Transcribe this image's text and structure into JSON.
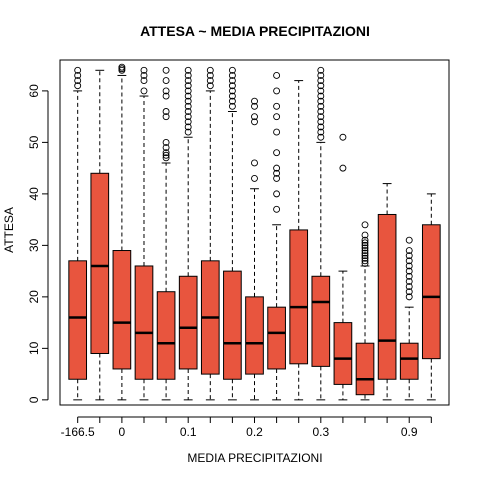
{
  "chart_data": {
    "type": "boxplot",
    "title": "ATTESA ~ MEDIA PRECIPITAZIONI",
    "xlabel": "MEDIA PRECIPITAZIONI",
    "ylabel": "ATTESA",
    "ylim": [
      -1,
      66
    ],
    "y_ticks": [
      0,
      10,
      20,
      30,
      40,
      50,
      60
    ],
    "x_tick_labels": [
      {
        "box": 1,
        "label": "-166.5"
      },
      {
        "box": 3,
        "label": "0"
      },
      {
        "box": 6,
        "label": "0.1"
      },
      {
        "box": 9,
        "label": "0.2"
      },
      {
        "box": 12,
        "label": "0.3"
      },
      {
        "box": 16,
        "label": "0.9"
      }
    ],
    "box_color": "#E8553E",
    "boxes": [
      {
        "q1": 4,
        "median": 16,
        "q3": 27,
        "lower": 0,
        "upper": 60,
        "outliers": [
          61,
          62,
          63,
          64
        ]
      },
      {
        "q1": 9,
        "median": 26,
        "q3": 44,
        "lower": 0,
        "upper": 64,
        "outliers": []
      },
      {
        "q1": 6,
        "median": 15,
        "q3": 29,
        "lower": 0,
        "upper": 63,
        "outliers": [
          64,
          64.3,
          64.6
        ]
      },
      {
        "q1": 4,
        "median": 13,
        "q3": 26,
        "lower": 0,
        "upper": 59,
        "outliers": [
          60,
          62,
          63,
          64
        ]
      },
      {
        "q1": 4,
        "median": 11,
        "q3": 21,
        "lower": 0,
        "upper": 46,
        "outliers": [
          47,
          47.5,
          48,
          49,
          50,
          55,
          56,
          59,
          60,
          62,
          64
        ]
      },
      {
        "q1": 6,
        "median": 14,
        "q3": 24,
        "lower": 0,
        "upper": 51,
        "outliers": [
          52,
          53,
          54,
          55,
          56,
          57,
          58,
          59,
          60,
          61,
          62,
          63,
          64
        ]
      },
      {
        "q1": 5,
        "median": 16,
        "q3": 27,
        "lower": 0,
        "upper": 60,
        "outliers": [
          61,
          62,
          63,
          64
        ]
      },
      {
        "q1": 4,
        "median": 11,
        "q3": 25,
        "lower": 0,
        "upper": 56,
        "outliers": [
          57,
          58,
          59,
          60,
          61,
          62,
          63,
          64
        ]
      },
      {
        "q1": 5,
        "median": 11,
        "q3": 20,
        "lower": 0,
        "upper": 41,
        "outliers": [
          43,
          46,
          54,
          55,
          57,
          58
        ]
      },
      {
        "q1": 6,
        "median": 13,
        "q3": 18,
        "lower": 0,
        "upper": 34,
        "outliers": [
          37,
          40,
          43,
          44,
          45,
          48,
          52,
          55,
          57,
          60,
          63
        ]
      },
      {
        "q1": 7,
        "median": 18,
        "q3": 33,
        "lower": 0,
        "upper": 62,
        "outliers": []
      },
      {
        "q1": 6.5,
        "median": 19,
        "q3": 24,
        "lower": 0,
        "upper": 50,
        "outliers": [
          51,
          52,
          53,
          54,
          55,
          56,
          57,
          58,
          59,
          60,
          61,
          62,
          63,
          64
        ]
      },
      {
        "q1": 3,
        "median": 8,
        "q3": 15,
        "lower": 0,
        "upper": 25,
        "outliers": [
          45,
          51
        ]
      },
      {
        "q1": 1,
        "median": 4,
        "q3": 11,
        "lower": 0,
        "upper": 26,
        "outliers": [
          26.5,
          27,
          27.5,
          28,
          28.5,
          29,
          29.5,
          30,
          30.5,
          31,
          32,
          34
        ]
      },
      {
        "q1": 4,
        "median": 11.5,
        "q3": 36,
        "lower": 0,
        "upper": 42,
        "outliers": []
      },
      {
        "q1": 4,
        "median": 8,
        "q3": 11,
        "lower": 0,
        "upper": 18,
        "outliers": [
          20,
          21,
          22,
          23,
          24,
          25,
          26,
          27,
          28,
          29,
          31
        ]
      },
      {
        "q1": 8,
        "median": 20,
        "q3": 34,
        "lower": 0,
        "upper": 40,
        "outliers": []
      }
    ]
  }
}
